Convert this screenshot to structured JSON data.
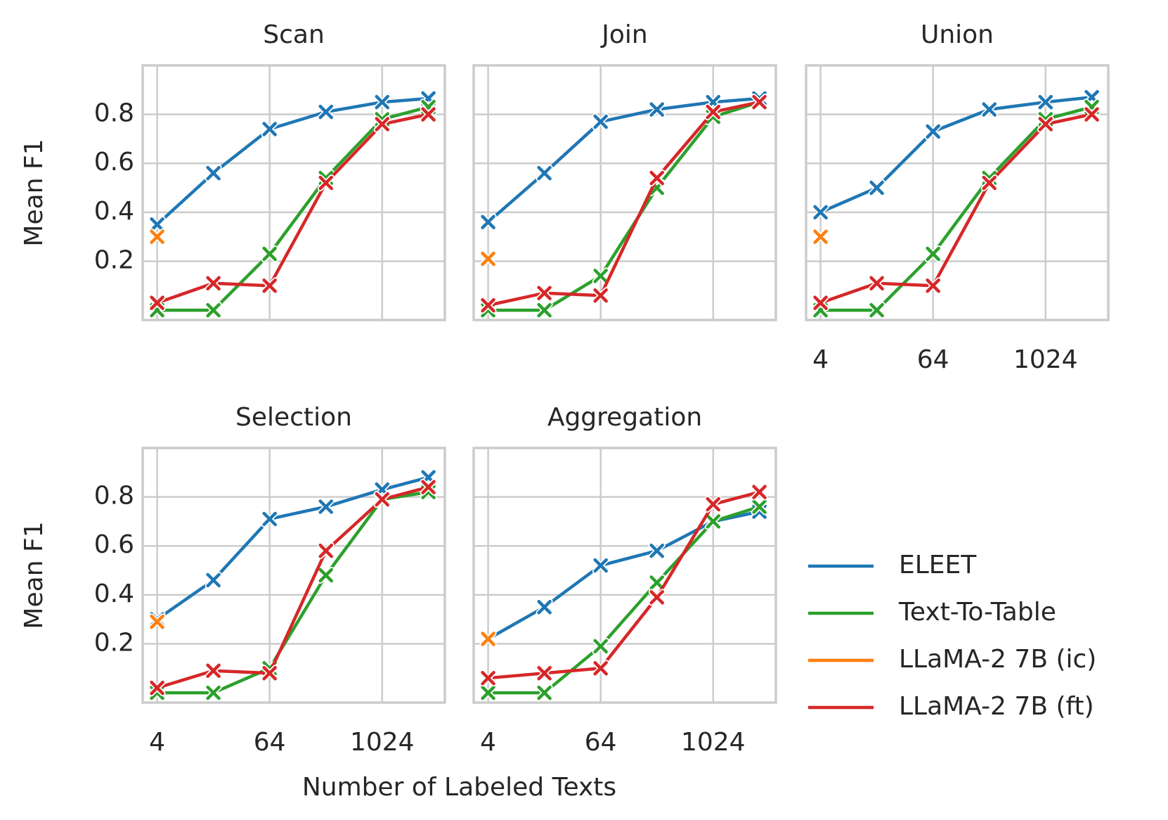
{
  "chart_data": [
    {
      "type": "line",
      "title": "Scan",
      "ylabel": "Mean F1",
      "x": [
        4,
        16,
        64,
        256,
        1024,
        3200
      ],
      "xscale": "log",
      "xlim": [
        2.8,
        4800
      ],
      "xticks": [
        4,
        64,
        1024
      ],
      "ylim": [
        -0.04,
        1.0
      ],
      "yticks": [
        0.2,
        0.4,
        0.6,
        0.8
      ],
      "grid": true,
      "series": [
        {
          "name": "ELEET",
          "color": "#1f77b4",
          "values": [
            0.35,
            0.56,
            0.74,
            0.81,
            0.85,
            0.865
          ]
        },
        {
          "name": "Text-To-Table",
          "color": "#2ca02c",
          "values": [
            0.0,
            0.0,
            0.23,
            0.54,
            0.78,
            0.83
          ]
        },
        {
          "name": "LLaMA-2 7B (ic)",
          "color": "#ff7f0e",
          "values": [
            0.3,
            null,
            null,
            null,
            null,
            null
          ]
        },
        {
          "name": "LLaMA-2 7B (ft)",
          "color": "#d62728",
          "values": [
            0.03,
            0.11,
            0.1,
            0.52,
            0.76,
            0.8
          ]
        }
      ]
    },
    {
      "type": "line",
      "title": "Join",
      "x": [
        4,
        16,
        64,
        256,
        1024,
        3200
      ],
      "xscale": "log",
      "xlim": [
        2.8,
        4800
      ],
      "xticks": [
        4,
        64,
        1024
      ],
      "ylim": [
        -0.04,
        1.0
      ],
      "yticks": [
        0.2,
        0.4,
        0.6,
        0.8
      ],
      "grid": true,
      "series": [
        {
          "values": [
            0.36,
            0.56,
            0.77,
            0.82,
            0.85,
            0.865
          ]
        },
        {
          "values": [
            0.0,
            0.0,
            0.14,
            0.5,
            0.79,
            0.85
          ]
        },
        {
          "values": [
            0.21,
            null,
            null,
            null,
            null,
            null
          ]
        },
        {
          "values": [
            0.02,
            0.07,
            0.06,
            0.54,
            0.81,
            0.85
          ]
        }
      ]
    },
    {
      "type": "line",
      "title": "Union",
      "x": [
        4,
        16,
        64,
        256,
        1024,
        3200
      ],
      "xscale": "log",
      "xlim": [
        2.8,
        4800
      ],
      "xticks": [
        4,
        64,
        1024
      ],
      "ylim": [
        -0.04,
        1.0
      ],
      "yticks": [
        0.2,
        0.4,
        0.6,
        0.8
      ],
      "grid": true,
      "series": [
        {
          "values": [
            0.4,
            0.5,
            0.73,
            0.82,
            0.85,
            0.87
          ]
        },
        {
          "values": [
            0.0,
            0.0,
            0.23,
            0.54,
            0.78,
            0.83
          ]
        },
        {
          "values": [
            0.3,
            null,
            null,
            null,
            null,
            null
          ]
        },
        {
          "values": [
            0.03,
            0.11,
            0.1,
            0.52,
            0.76,
            0.8
          ]
        }
      ]
    },
    {
      "type": "line",
      "title": "Selection",
      "ylabel": "Mean F1",
      "x": [
        4,
        16,
        64,
        256,
        1024,
        3200
      ],
      "xscale": "log",
      "xlim": [
        2.8,
        4800
      ],
      "xticks": [
        4,
        64,
        1024
      ],
      "ylim": [
        -0.04,
        1.0
      ],
      "yticks": [
        0.2,
        0.4,
        0.6,
        0.8
      ],
      "grid": true,
      "series": [
        {
          "values": [
            0.3,
            0.46,
            0.71,
            0.76,
            0.83,
            0.88
          ]
        },
        {
          "values": [
            0.0,
            0.0,
            0.1,
            0.48,
            0.79,
            0.82
          ]
        },
        {
          "values": [
            0.29,
            null,
            null,
            null,
            null,
            null
          ]
        },
        {
          "values": [
            0.02,
            0.09,
            0.08,
            0.58,
            0.79,
            0.84
          ]
        }
      ]
    },
    {
      "type": "line",
      "title": "Aggregation",
      "xlabel": "Number of Labeled Texts",
      "x": [
        4,
        16,
        64,
        256,
        1024,
        3200
      ],
      "xscale": "log",
      "xlim": [
        2.8,
        4800
      ],
      "xticks": [
        4,
        64,
        1024
      ],
      "ylim": [
        -0.04,
        1.0
      ],
      "yticks": [
        0.2,
        0.4,
        0.6,
        0.8
      ],
      "grid": true,
      "series": [
        {
          "values": [
            0.22,
            0.35,
            0.52,
            0.58,
            0.7,
            0.74
          ]
        },
        {
          "values": [
            0.0,
            0.0,
            0.19,
            0.45,
            0.7,
            0.76
          ]
        },
        {
          "values": [
            0.22,
            null,
            null,
            null,
            null,
            null
          ]
        },
        {
          "values": [
            0.06,
            0.08,
            0.1,
            0.39,
            0.77,
            0.82
          ]
        }
      ]
    }
  ]
}
